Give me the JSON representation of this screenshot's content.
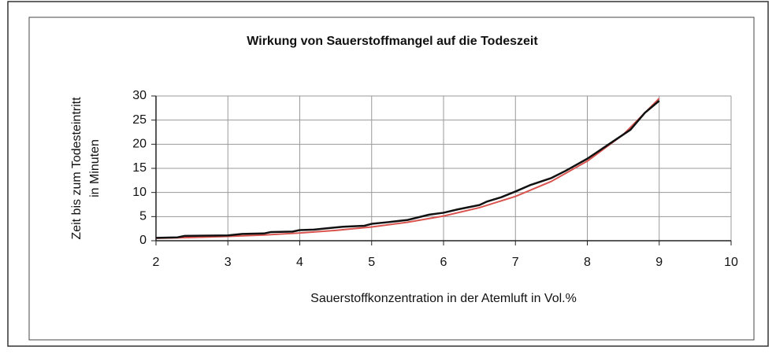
{
  "chart_data": {
    "type": "line",
    "title": "Wirkung von Sauerstoffmangel auf die Todeszeit",
    "y_label": [
      "Zeit bis zum Todesteintritt",
      "in Minuten"
    ],
    "x_label": "Sauerstoffkonzentration in der Atemluft in Vol.%",
    "xlim": [
      2,
      10
    ],
    "xticks": [
      2,
      3,
      4,
      5,
      6,
      7,
      8,
      9,
      10
    ],
    "ylim": [
      0,
      30
    ],
    "yticks": [
      0,
      5,
      10,
      15,
      20,
      25,
      30
    ],
    "grid": true,
    "series": [
      {
        "color": "#d9534f",
        "x": [
          2,
          2.5,
          3,
          3.5,
          4,
          4.5,
          5,
          5.5,
          6,
          6.5,
          7,
          7.5,
          8,
          8.5,
          9
        ],
        "values": [
          0.5,
          0.67,
          0.89,
          1.19,
          1.6,
          2.14,
          2.86,
          3.83,
          5.12,
          6.86,
          9.18,
          12.3,
          16.5,
          22,
          29.5
        ]
      },
      {
        "color": "#111111",
        "x": [
          2,
          2.3,
          2.4,
          3,
          3.2,
          3.5,
          3.6,
          3.9,
          4,
          4.2,
          4.4,
          4.6,
          4.9,
          5,
          5.2,
          5.5,
          5.8,
          6,
          6.2,
          6.5,
          6.6,
          6.8,
          7,
          7.2,
          7.5,
          7.7,
          8,
          8.3,
          8.6,
          8.8,
          9
        ],
        "values": [
          0.6,
          0.7,
          1.0,
          1.1,
          1.4,
          1.5,
          1.8,
          1.9,
          2.2,
          2.3,
          2.6,
          2.9,
          3.1,
          3.5,
          3.8,
          4.3,
          5.4,
          5.8,
          6.5,
          7.4,
          8.1,
          9.0,
          10.2,
          11.5,
          13.0,
          14.5,
          17.0,
          20.0,
          23.0,
          26.5,
          29.0
        ]
      }
    ]
  }
}
